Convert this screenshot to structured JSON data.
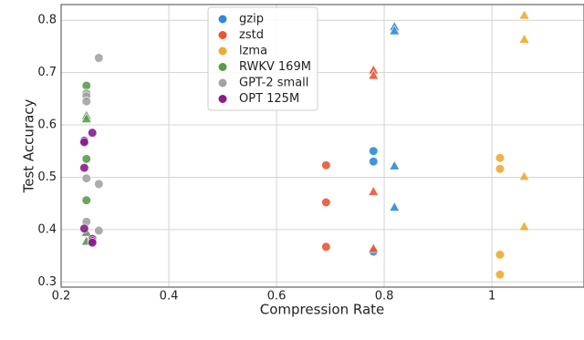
{
  "chart_data": {
    "type": "scatter",
    "xlabel": "Compression Rate",
    "ylabel": "Test Accuracy",
    "xlim": [
      0.2,
      1.171
    ],
    "ylim": [
      0.29,
      0.83
    ],
    "xticks": [
      0.2,
      0.4,
      0.6,
      0.8,
      1.0
    ],
    "yticks": [
      0.3,
      0.4,
      0.5,
      0.6,
      0.7,
      0.8
    ],
    "grid": true,
    "legend": "upper center",
    "series": [
      {
        "name": "gzip",
        "color": "#2f8ad8",
        "x": [
          0.78,
          0.78,
          0.78,
          0.819,
          0.819,
          0.819,
          0.819
        ],
        "values": [
          0.55,
          0.53,
          0.358,
          0.788,
          0.78,
          0.522,
          0.443
        ],
        "marker": [
          "circle",
          "circle",
          "circle",
          "triangle",
          "triangle",
          "triangle",
          "triangle"
        ]
      },
      {
        "name": "zstd",
        "color": "#ea5535",
        "x": [
          0.692,
          0.692,
          0.692,
          0.78,
          0.78,
          0.78,
          0.78
        ],
        "values": [
          0.523,
          0.452,
          0.367,
          0.705,
          0.695,
          0.473,
          0.364
        ],
        "marker": [
          "circle",
          "circle",
          "circle",
          "triangle",
          "triangle",
          "triangle",
          "triangle"
        ]
      },
      {
        "name": "lzma",
        "color": "#f0aa2e",
        "x": [
          1.015,
          1.015,
          1.015,
          1.015,
          1.06,
          1.06,
          1.06,
          1.06
        ],
        "values": [
          0.537,
          0.516,
          0.352,
          0.314,
          0.81,
          0.764,
          0.502,
          0.406
        ],
        "marker": [
          "circle",
          "circle",
          "circle",
          "circle",
          "triangle",
          "triangle",
          "triangle",
          "triangle"
        ]
      },
      {
        "name": "RWKV 169M",
        "color": "#5c9a4c",
        "x": [
          0.247,
          0.247,
          0.247,
          0.247,
          0.247,
          0.247,
          0.247,
          0.247
        ],
        "values": [
          0.675,
          0.66,
          0.535,
          0.456,
          0.618,
          0.612,
          0.395,
          0.378
        ],
        "marker": [
          "circle",
          "circle",
          "circle",
          "circle",
          "triangle",
          "triangle",
          "triangle",
          "triangle"
        ]
      },
      {
        "name": "GPT-2 small",
        "color": "#a3a3a3",
        "x": [
          0.247,
          0.247,
          0.247,
          0.247,
          0.247,
          0.27,
          0.27,
          0.27
        ],
        "values": [
          0.66,
          0.655,
          0.645,
          0.498,
          0.415,
          0.728,
          0.487,
          0.398
        ],
        "marker": [
          "circle",
          "circle",
          "circle",
          "circle",
          "circle",
          "circle",
          "circle",
          "circle"
        ]
      },
      {
        "name": "OPT 125M",
        "color": "#8a1c8c",
        "x": [
          0.243,
          0.243,
          0.243,
          0.243,
          0.258,
          0.258,
          0.258,
          0.258
        ],
        "values": [
          0.57,
          0.567,
          0.518,
          0.402,
          0.585,
          0.382,
          0.378,
          0.375
        ],
        "marker": [
          "circle",
          "circle",
          "circle",
          "circle",
          "circle",
          "circle",
          "circle",
          "circle"
        ]
      }
    ]
  }
}
